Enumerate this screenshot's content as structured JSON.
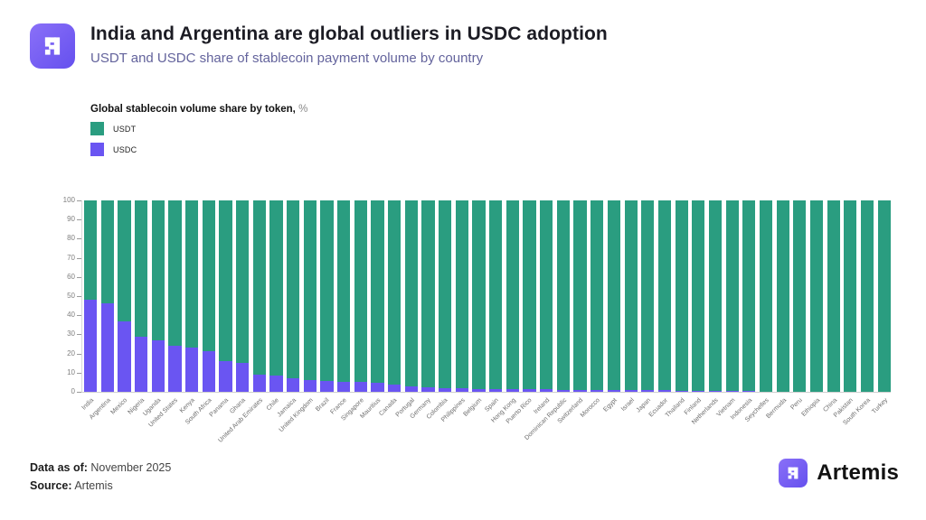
{
  "header": {
    "title": "India and Argentina are global outliers in USDC adoption",
    "subtitle": "USDT and USDC share of stablecoin payment volume by country"
  },
  "legend": {
    "title": "Global stablecoin volume share by token,",
    "unit": "%",
    "items": [
      {
        "label": "USDT",
        "color": "#2a9d80"
      },
      {
        "label": "USDC",
        "color": "#6a55f2"
      }
    ]
  },
  "chart_data": {
    "type": "bar",
    "stacked": true,
    "title": "Global stablecoin volume share by token, %",
    "xlabel": "",
    "ylabel": "",
    "ylim": [
      0,
      100
    ],
    "yticks": [
      0,
      10,
      20,
      30,
      40,
      50,
      60,
      70,
      80,
      90,
      100
    ],
    "grid": false,
    "legend_position": "top-left",
    "categories": [
      "India",
      "Argentina",
      "Mexico",
      "Nigeria",
      "Uganda",
      "United States",
      "Kenya",
      "South Africa",
      "Panama",
      "Ghana",
      "United Arab Emirates",
      "Chile",
      "Jamaica",
      "United Kingdom",
      "Brazil",
      "France",
      "Singapore",
      "Mauritius",
      "Canada",
      "Portugal",
      "Germany",
      "Colombia",
      "Philippines",
      "Belgium",
      "Spain",
      "Hong Kong",
      "Puerto Rico",
      "Ireland",
      "Dominican Republic",
      "Switzerland",
      "Morocco",
      "Egypt",
      "Israel",
      "Japan",
      "Ecuador",
      "Thailand",
      "Finland",
      "Netherlands",
      "Vietnam",
      "Indonesia",
      "Seychelles",
      "Bermuda",
      "Peru",
      "Ethiopia",
      "China",
      "Pakistan",
      "South Korea",
      "Turkey"
    ],
    "series": [
      {
        "name": "USDT",
        "color": "#2a9d80",
        "values": [
          52,
          54,
          63,
          71,
          73,
          76,
          77,
          79,
          84,
          85,
          91,
          91.5,
          93,
          94,
          94.5,
          95,
          95,
          95.5,
          96,
          97,
          97.5,
          98,
          98.2,
          98.4,
          98.5,
          98.6,
          98.7,
          98.8,
          98.9,
          99,
          99,
          99.1,
          99.1,
          99.2,
          99.2,
          99.3,
          99.3,
          99.4,
          99.5,
          99.5,
          100,
          100,
          100,
          100,
          100,
          100,
          100,
          100
        ]
      },
      {
        "name": "USDC",
        "color": "#6a55f2",
        "values": [
          48,
          46,
          37,
          29,
          27,
          24,
          23,
          21,
          16,
          15,
          9,
          8.5,
          7,
          6,
          5.5,
          5,
          5,
          4.5,
          4,
          3,
          2.5,
          2,
          1.8,
          1.6,
          1.5,
          1.4,
          1.3,
          1.2,
          1.1,
          1,
          1,
          0.9,
          0.9,
          0.8,
          0.8,
          0.7,
          0.7,
          0.6,
          0.5,
          0.5,
          0,
          0,
          0,
          0,
          0,
          0,
          0,
          0
        ]
      }
    ]
  },
  "footer": {
    "data_as_of_label": "Data as of:",
    "data_as_of_value": " November 2025",
    "source_label": "Source:",
    "source_value": " Artemis",
    "brand": "Artemis"
  }
}
